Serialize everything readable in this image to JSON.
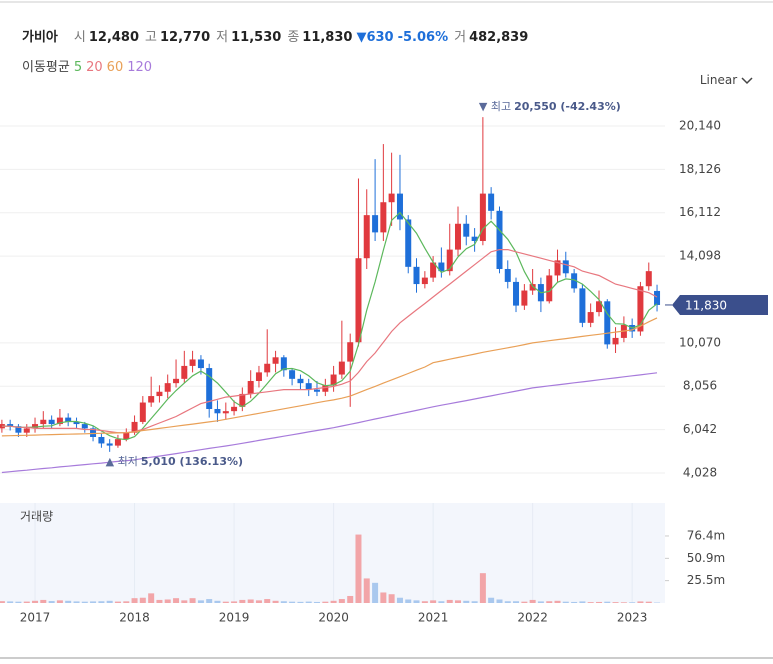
{
  "header": {
    "name": "가비아",
    "fields": [
      {
        "label": "시",
        "value": "12,480"
      },
      {
        "label": "고",
        "value": "12,770"
      },
      {
        "label": "저",
        "value": "11,530"
      },
      {
        "label": "종",
        "value": "11,830"
      }
    ],
    "change": "▼630",
    "change_pct": "-5.06%",
    "volume_label": "거",
    "volume_value": "482,839"
  },
  "chart_data": {
    "type": "candlestick",
    "scale": "Linear",
    "up_color": "#e0393e",
    "down_color": "#1e6fd9",
    "volume_up_color": "#f2a5a8",
    "volume_down_color": "#a9c8ee",
    "x": [
      2016.667,
      2016.75,
      2016.833,
      2016.917,
      2017,
      2017.083,
      2017.167,
      2017.25,
      2017.333,
      2017.417,
      2017.5,
      2017.583,
      2017.667,
      2017.75,
      2017.833,
      2017.917,
      2018,
      2018.083,
      2018.167,
      2018.25,
      2018.333,
      2018.417,
      2018.5,
      2018.583,
      2018.667,
      2018.75,
      2018.833,
      2018.917,
      2019,
      2019.083,
      2019.167,
      2019.25,
      2019.333,
      2019.417,
      2019.5,
      2019.583,
      2019.667,
      2019.75,
      2019.833,
      2019.917,
      2020,
      2020.083,
      2020.167,
      2020.25,
      2020.333,
      2020.417,
      2020.5,
      2020.583,
      2020.667,
      2020.75,
      2020.833,
      2020.917,
      2021,
      2021.083,
      2021.167,
      2021.25,
      2021.333,
      2021.417,
      2021.5,
      2021.583,
      2021.667,
      2021.75,
      2021.833,
      2021.917,
      2022,
      2022.083,
      2022.167,
      2022.25,
      2022.333,
      2022.417,
      2022.5,
      2022.583,
      2022.667,
      2022.75,
      2022.833,
      2022.917,
      2023,
      2023.083,
      2023.167,
      2023.25
    ],
    "open": [
      6100,
      6300,
      6200,
      5900,
      6100,
      6300,
      6500,
      6300,
      6600,
      6400,
      6300,
      6100,
      5700,
      5400,
      5300,
      5600,
      5900,
      6400,
      7300,
      7600,
      7800,
      8200,
      8400,
      9000,
      9300,
      8900,
      7000,
      6800,
      6900,
      7100,
      7700,
      8300,
      8700,
      9100,
      9400,
      8800,
      8400,
      8200,
      7900,
      7800,
      8100,
      8600,
      9200,
      10100,
      14000,
      16000,
      15200,
      16600,
      17000,
      15800,
      13600,
      12800,
      13100,
      13800,
      13400,
      14400,
      15600,
      15000,
      14800,
      17000,
      16200,
      13500,
      12900,
      11800,
      12500,
      12800,
      12000,
      13200,
      13900,
      13300,
      12600,
      11000,
      11500,
      12000,
      10000,
      10300,
      10900,
      10600,
      12700,
      12480
    ],
    "high": [
      6500,
      6500,
      6300,
      6300,
      6600,
      6900,
      6700,
      7000,
      6800,
      6600,
      6400,
      6200,
      5900,
      5600,
      5800,
      6100,
      6700,
      7600,
      8500,
      8100,
      8600,
      9300,
      9700,
      9700,
      9500,
      9100,
      7400,
      7300,
      7400,
      8000,
      8800,
      9000,
      10700,
      9700,
      9500,
      8900,
      8600,
      8400,
      8300,
      8400,
      9000,
      11100,
      10500,
      17700,
      17200,
      18600,
      19300,
      18900,
      18800,
      16000,
      14000,
      13400,
      14100,
      14500,
      15600,
      16400,
      16000,
      15400,
      20550,
      17300,
      16400,
      13900,
      13100,
      12800,
      13500,
      13100,
      13500,
      14400,
      14300,
      13500,
      12800,
      11900,
      12500,
      12100,
      10800,
      11300,
      11200,
      12900,
      13800,
      12770
    ],
    "low": [
      5900,
      6000,
      5700,
      5700,
      5900,
      6100,
      6100,
      6200,
      6200,
      6100,
      5900,
      5500,
      5200,
      5010,
      5200,
      5500,
      5800,
      6300,
      7100,
      7300,
      7500,
      8000,
      8200,
      8700,
      8600,
      6600,
      6400,
      6500,
      6700,
      6900,
      7500,
      8000,
      8500,
      8700,
      8500,
      8100,
      7900,
      7600,
      7600,
      7600,
      7800,
      8400,
      7100,
      9900,
      13500,
      14800,
      14800,
      15500,
      15300,
      13300,
      12400,
      12600,
      12900,
      13100,
      13200,
      14100,
      14600,
      14300,
      14600,
      15800,
      13300,
      12600,
      11500,
      11600,
      12300,
      11500,
      11900,
      12900,
      13100,
      12400,
      10800,
      10800,
      11300,
      9800,
      9600,
      10100,
      10300,
      10400,
      12500,
      11530
    ],
    "close": [
      6300,
      6200,
      5900,
      6100,
      6300,
      6500,
      6300,
      6600,
      6400,
      6300,
      6100,
      5700,
      5400,
      5300,
      5600,
      5900,
      6400,
      7300,
      7600,
      7800,
      8200,
      8400,
      9000,
      9300,
      8900,
      7000,
      6800,
      6900,
      7100,
      7700,
      8300,
      8700,
      9100,
      9400,
      8800,
      8400,
      8200,
      7900,
      7800,
      8100,
      8600,
      9200,
      10100,
      14000,
      16000,
      15200,
      16600,
      17000,
      15800,
      13600,
      12800,
      13100,
      13800,
      13400,
      14400,
      15600,
      15000,
      14800,
      17000,
      16200,
      13500,
      12900,
      11800,
      12500,
      12800,
      12000,
      13200,
      13900,
      13300,
      12600,
      11000,
      11500,
      12000,
      10000,
      10300,
      10900,
      10600,
      12700,
      13400,
      11830
    ],
    "volume": [
      2100000,
      1800000,
      1500000,
      1600000,
      2500000,
      3500000,
      2200000,
      3000000,
      2500000,
      1800000,
      1500000,
      1800000,
      2000000,
      2500000,
      1600000,
      1900000,
      5500000,
      6000000,
      11000000,
      3500000,
      4000000,
      5500000,
      3000000,
      5500000,
      3000000,
      4500000,
      2500000,
      1500000,
      1800000,
      3500000,
      4000000,
      3000000,
      4500000,
      2500000,
      2000000,
      1500000,
      1300000,
      1600000,
      1200000,
      1500000,
      2500000,
      4500000,
      8000000,
      78000000,
      28000000,
      23000000,
      12000000,
      10000000,
      6000000,
      4000000,
      3000000,
      2000000,
      3000000,
      2000000,
      3500000,
      3000000,
      2500000,
      2000000,
      34000000,
      6000000,
      4000000,
      2000000,
      2000000,
      1500000,
      3500000,
      1800000,
      2000000,
      2500000,
      1500000,
      1200000,
      1800000,
      1000000,
      1200000,
      1500000,
      1000000,
      800000,
      800000,
      1800000,
      1500000,
      482839
    ],
    "xlim": [
      2016.648,
      2023.33
    ],
    "xticks": [
      2017,
      2018,
      2019,
      2020,
      2021,
      2022,
      2023
    ],
    "ylim": [
      3239,
      21578
    ],
    "yticks": [
      {
        "value": 4028,
        "label": "4,028"
      },
      {
        "value": 6042,
        "label": "6,042"
      },
      {
        "value": 8056,
        "label": "8,056"
      },
      {
        "value": 10070,
        "label": "10,070"
      },
      {
        "value": 14098,
        "label": "14,098"
      },
      {
        "value": 16112,
        "label": "16,112"
      },
      {
        "value": 18126,
        "label": "18,126"
      },
      {
        "value": 20140,
        "label": "20,140"
      }
    ],
    "grid": true,
    "last_price_label": "11,830",
    "annotations": [
      {
        "marker": "▼ 최고",
        "text": "20,550 (-42.43%)",
        "at": "high"
      },
      {
        "marker": "▲ 최저",
        "text": "5,010 (136.13%)",
        "at": "low"
      }
    ],
    "moving_averages": {
      "label": "이동평균",
      "series": [
        {
          "name": "5",
          "color": "#5cb85c",
          "values": [
            6200,
            6200,
            6150,
            6150,
            6160,
            6200,
            6220,
            6360,
            6420,
            6420,
            6340,
            6220,
            5980,
            5760,
            5620,
            5580,
            5720,
            6100,
            6560,
            7000,
            7460,
            7860,
            8200,
            8540,
            8760,
            8520,
            8200,
            7780,
            7340,
            7100,
            7360,
            7740,
            8180,
            8640,
            8860,
            8880,
            8780,
            8540,
            8220,
            8080,
            8120,
            8320,
            8760,
            10000,
            11580,
            12900,
            14380,
            15760,
            16120,
            15640,
            15160,
            14460,
            13820,
            13340,
            13500,
            14060,
            14440,
            14640,
            15360,
            15720,
            15300,
            14880,
            14280,
            13380,
            12700,
            12400,
            12460,
            12880,
            13040,
            13000,
            12800,
            12460,
            12080,
            11420,
            10960,
            10940,
            10760,
            10900,
            11580,
            11886
          ]
        },
        {
          "name": "20",
          "color": "#e8777f",
          "values": [
            6200,
            6200,
            6150,
            6150,
            6100,
            6100,
            6100,
            6100,
            6100,
            6100,
            6050,
            6050,
            6000,
            5950,
            5900,
            5900,
            5950,
            6050,
            6200,
            6350,
            6500,
            6650,
            6850,
            7050,
            7250,
            7350,
            7450,
            7550,
            7600,
            7650,
            7700,
            7750,
            7800,
            7850,
            7900,
            7900,
            7900,
            7900,
            7950,
            8000,
            8050,
            8150,
            8300,
            8700,
            9200,
            9600,
            10100,
            10600,
            11000,
            11300,
            11600,
            11900,
            12200,
            12500,
            12800,
            13100,
            13400,
            13700,
            14000,
            14300,
            14400,
            14400,
            14300,
            14200,
            14100,
            14000,
            13900,
            13800,
            13700,
            13600,
            13400,
            13300,
            13200,
            13000,
            12800,
            12700,
            12600,
            12500,
            12400,
            12200
          ]
        },
        {
          "name": "60",
          "color": "#e9a057",
          "values": [
            5750,
            5760,
            5770,
            5780,
            5790,
            5800,
            5810,
            5820,
            5830,
            5840,
            5850,
            5860,
            5870,
            5880,
            5890,
            5900,
            5940,
            6000,
            6050,
            6100,
            6150,
            6200,
            6250,
            6300,
            6350,
            6400,
            6450,
            6520,
            6590,
            6660,
            6730,
            6800,
            6870,
            6940,
            7010,
            7080,
            7150,
            7220,
            7290,
            7360,
            7420,
            7500,
            7600,
            7750,
            7900,
            8050,
            8200,
            8350,
            8500,
            8650,
            8800,
            8950,
            9150,
            9230,
            9310,
            9390,
            9470,
            9550,
            9630,
            9700,
            9770,
            9840,
            9910,
            9990,
            10070,
            10120,
            10170,
            10220,
            10270,
            10320,
            10370,
            10420,
            10470,
            10520,
            10570,
            10620,
            10670,
            10850,
            11050,
            11230
          ]
        },
        {
          "name": "120",
          "color": "#a77bdb",
          "values": [
            4050,
            4090,
            4125,
            4160,
            4200,
            4235,
            4270,
            4310,
            4345,
            4380,
            4420,
            4455,
            4490,
            4530,
            4565,
            4600,
            4640,
            4700,
            4760,
            4815,
            4870,
            4930,
            4990,
            5050,
            5110,
            5170,
            5225,
            5280,
            5340,
            5405,
            5470,
            5540,
            5605,
            5670,
            5735,
            5800,
            5865,
            5935,
            6000,
            6065,
            6130,
            6210,
            6290,
            6370,
            6450,
            6535,
            6615,
            6695,
            6775,
            6855,
            6935,
            7020,
            7100,
            7175,
            7245,
            7320,
            7390,
            7465,
            7540,
            7610,
            7685,
            7755,
            7830,
            7905,
            7980,
            8025,
            8075,
            8120,
            8165,
            8215,
            8260,
            8305,
            8355,
            8400,
            8445,
            8495,
            8540,
            8585,
            8635,
            8680
          ]
        }
      ]
    },
    "volume_panel": {
      "title": "거래량",
      "ylim": [
        0,
        111700000
      ],
      "yticks": [
        {
          "value": 25500000,
          "label": "25.5m"
        },
        {
          "value": 50900000,
          "label": "50.9m"
        },
        {
          "value": 76400000,
          "label": "76.4m"
        }
      ]
    }
  }
}
